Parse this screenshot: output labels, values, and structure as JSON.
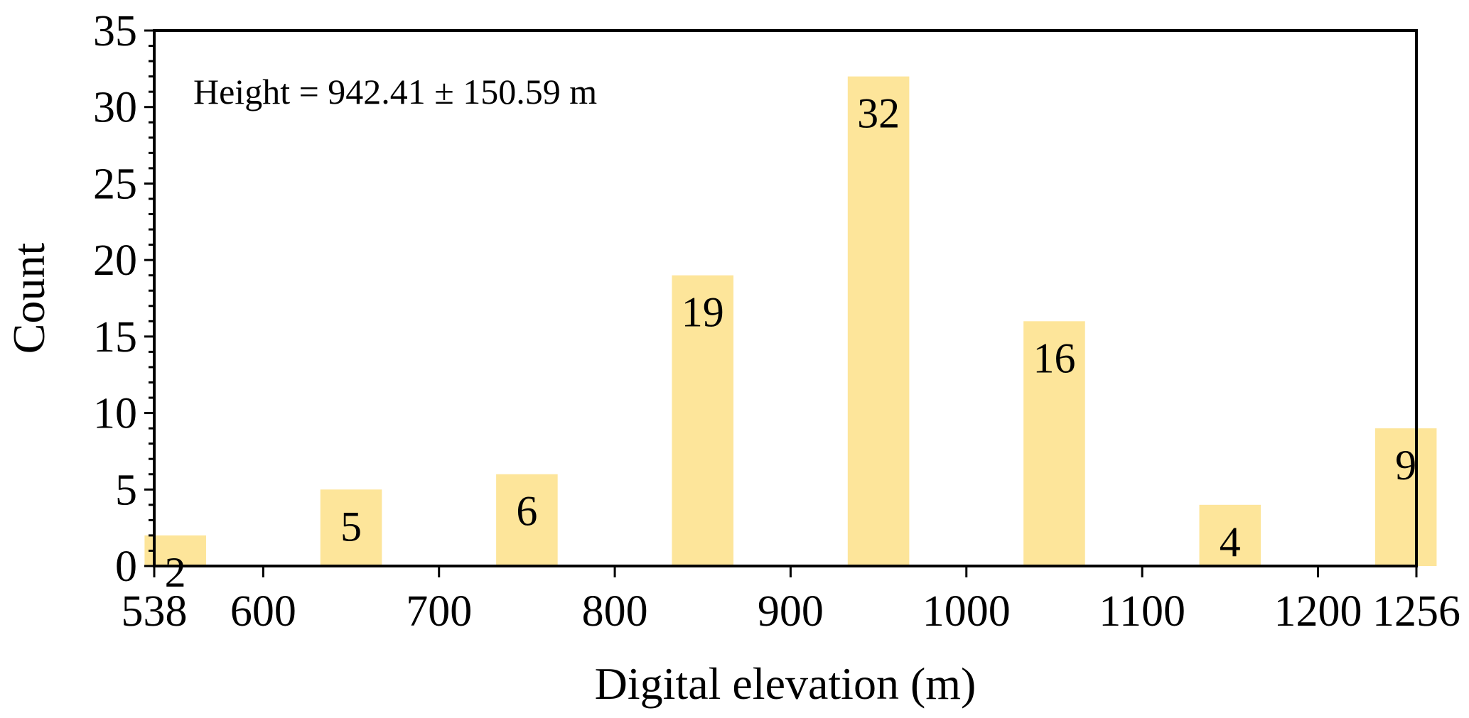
{
  "chart_data": {
    "type": "bar",
    "title": "",
    "xlabel": "Digital elevation (m)",
    "ylabel": "Count",
    "annotation": "Height = 942.41 ± 150.59 m",
    "x": [
      550,
      650,
      750,
      850,
      950,
      1050,
      1150,
      1250
    ],
    "values": [
      2,
      5,
      6,
      19,
      32,
      16,
      4,
      9
    ],
    "bar_width": 35,
    "xlim": [
      538,
      1256
    ],
    "ylim": [
      0,
      35
    ],
    "x_ticks": [
      538,
      600,
      700,
      800,
      900,
      1000,
      1100,
      1200,
      1256
    ],
    "y_ticks": [
      0,
      5,
      10,
      15,
      20,
      25,
      30,
      35
    ],
    "y_minor_step": 1,
    "grid": false,
    "legend": "none",
    "bar_color": "#FDE59A"
  }
}
